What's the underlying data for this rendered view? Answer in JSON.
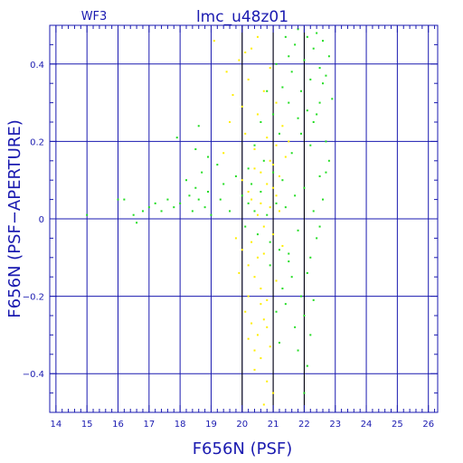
{
  "chart_data": {
    "type": "scatter",
    "title": "lmc_u48z01",
    "corner_label": "WF3",
    "xlabel": "F656N (PSF)",
    "ylabel": "F656N (PSF−APERTURE)",
    "xlim": [
      13.8,
      26.3
    ],
    "ylim": [
      -0.5,
      0.5
    ],
    "x_ticks": [
      14,
      15,
      16,
      17,
      18,
      19,
      20,
      21,
      22,
      23,
      24,
      25,
      26
    ],
    "y_ticks": [
      -0.4,
      -0.2,
      0,
      0.2,
      0.4
    ],
    "y_tick_labels": [
      "−0.4",
      "−0.2",
      "0",
      "0.2",
      "0.4"
    ],
    "grid": true,
    "colors": {
      "frame": "#1a1ab0",
      "grid": "#1a1ab0",
      "reference_lines": "#000000",
      "series_green": "#22dd22",
      "series_yellow": "#ffee00"
    },
    "reference_lines_x": [
      20,
      21,
      22
    ],
    "series": [
      {
        "color": "#ffee00",
        "points": [
          [
            19.1,
            0.46
          ],
          [
            19.5,
            0.38
          ],
          [
            19.7,
            0.32
          ],
          [
            19.9,
            0.41
          ],
          [
            20.0,
            0.29
          ],
          [
            20.1,
            0.22
          ],
          [
            20.2,
            0.36
          ],
          [
            20.3,
            0.44
          ],
          [
            20.4,
            0.18
          ],
          [
            20.5,
            0.27
          ],
          [
            20.6,
            0.12
          ],
          [
            20.7,
            0.33
          ],
          [
            20.8,
            0.21
          ],
          [
            20.9,
            0.15
          ],
          [
            21.0,
            0.08
          ],
          [
            21.1,
            0.19
          ],
          [
            21.2,
            0.11
          ],
          [
            21.3,
            0.24
          ],
          [
            20.3,
            0.05
          ],
          [
            20.5,
            0.01
          ],
          [
            20.7,
            -0.02
          ],
          [
            20.9,
            0.03
          ],
          [
            21.1,
            0.06
          ],
          [
            21.0,
            0.14
          ],
          [
            19.8,
            -0.05
          ],
          [
            20.0,
            -0.08
          ],
          [
            20.2,
            -0.12
          ],
          [
            20.4,
            -0.15
          ],
          [
            20.6,
            -0.18
          ],
          [
            20.8,
            -0.21
          ],
          [
            20.1,
            -0.24
          ],
          [
            20.3,
            -0.27
          ],
          [
            20.5,
            -0.3
          ],
          [
            20.7,
            -0.26
          ],
          [
            20.9,
            -0.33
          ],
          [
            20.6,
            -0.36
          ],
          [
            20.4,
            -0.39
          ],
          [
            20.8,
            -0.42
          ],
          [
            21.0,
            -0.45
          ],
          [
            20.7,
            -0.48
          ],
          [
            20.2,
            -0.31
          ],
          [
            19.9,
            -0.14
          ],
          [
            20.0,
            0.1
          ],
          [
            20.2,
            0.07
          ],
          [
            20.4,
            0.13
          ],
          [
            20.6,
            0.04
          ],
          [
            20.8,
            0.09
          ],
          [
            21.2,
            0.02
          ],
          [
            21.4,
            0.16
          ],
          [
            21.5,
            0.2
          ],
          [
            21.1,
            0.3
          ],
          [
            20.9,
            0.39
          ],
          [
            20.5,
            0.47
          ],
          [
            20.1,
            0.43
          ],
          [
            19.6,
            0.25
          ],
          [
            19.4,
            0.17
          ],
          [
            20.3,
            -0.06
          ],
          [
            20.5,
            -0.1
          ],
          [
            20.7,
            -0.09
          ],
          [
            21.0,
            -0.04
          ],
          [
            21.3,
            -0.07
          ],
          [
            20.6,
            -0.22
          ],
          [
            20.2,
            -0.2
          ],
          [
            20.8,
            -0.28
          ],
          [
            21.1,
            -0.16
          ],
          [
            20.4,
            -0.34
          ]
        ]
      },
      {
        "color": "#22dd22",
        "points": [
          [
            15.0,
            0.01
          ],
          [
            16.0,
            0.05
          ],
          [
            16.2,
            0.05
          ],
          [
            16.5,
            0.01
          ],
          [
            16.6,
            -0.01
          ],
          [
            16.8,
            0.02
          ],
          [
            17.0,
            0.03
          ],
          [
            17.2,
            0.04
          ],
          [
            17.4,
            0.02
          ],
          [
            17.6,
            0.05
          ],
          [
            17.8,
            0.03
          ],
          [
            18.0,
            0.04
          ],
          [
            17.9,
            0.21
          ],
          [
            18.2,
            0.1
          ],
          [
            18.3,
            0.06
          ],
          [
            18.4,
            0.02
          ],
          [
            18.5,
            0.08
          ],
          [
            18.6,
            0.05
          ],
          [
            18.7,
            0.12
          ],
          [
            18.8,
            0.03
          ],
          [
            18.9,
            0.07
          ],
          [
            19.0,
            0.01
          ],
          [
            18.5,
            0.18
          ],
          [
            18.6,
            0.24
          ],
          [
            18.9,
            0.16
          ],
          [
            19.2,
            0.14
          ],
          [
            19.3,
            0.05
          ],
          [
            19.4,
            0.09
          ],
          [
            19.6,
            0.02
          ],
          [
            19.8,
            0.11
          ],
          [
            20.0,
            0.06
          ],
          [
            20.1,
            -0.02
          ],
          [
            20.2,
            0.04
          ],
          [
            20.3,
            0.09
          ],
          [
            20.4,
            0.02
          ],
          [
            20.5,
            -0.04
          ],
          [
            20.6,
            0.07
          ],
          [
            20.7,
            0.15
          ],
          [
            20.8,
            0.01
          ],
          [
            20.9,
            -0.06
          ],
          [
            21.0,
            0.12
          ],
          [
            21.1,
            0.04
          ],
          [
            21.2,
            -0.08
          ],
          [
            21.3,
            0.1
          ],
          [
            21.4,
            0.03
          ],
          [
            21.5,
            -0.11
          ],
          [
            21.6,
            0.17
          ],
          [
            21.7,
            0.06
          ],
          [
            21.8,
            -0.03
          ],
          [
            21.9,
            0.22
          ],
          [
            22.0,
            0.08
          ],
          [
            22.1,
            -0.14
          ],
          [
            22.2,
            0.19
          ],
          [
            22.3,
            0.02
          ],
          [
            22.4,
            0.27
          ],
          [
            22.5,
            0.11
          ],
          [
            22.6,
            0.35
          ],
          [
            22.7,
            0.2
          ],
          [
            22.8,
            0.42
          ],
          [
            22.9,
            0.31
          ],
          [
            21.5,
            0.3
          ],
          [
            21.6,
            0.38
          ],
          [
            21.7,
            0.45
          ],
          [
            21.8,
            0.49
          ],
          [
            21.9,
            0.33
          ],
          [
            22.0,
            0.41
          ],
          [
            22.1,
            0.47
          ],
          [
            22.2,
            0.36
          ],
          [
            22.3,
            0.44
          ],
          [
            22.4,
            0.48
          ],
          [
            22.5,
            0.39
          ],
          [
            22.6,
            0.46
          ],
          [
            22.1,
            0.28
          ],
          [
            22.3,
            0.25
          ],
          [
            22.5,
            0.3
          ],
          [
            22.7,
            0.37
          ],
          [
            21.9,
            -0.2
          ],
          [
            22.0,
            -0.25
          ],
          [
            22.2,
            -0.3
          ],
          [
            21.8,
            -0.34
          ],
          [
            22.1,
            -0.38
          ],
          [
            22.0,
            -0.45
          ],
          [
            21.7,
            -0.28
          ],
          [
            21.6,
            -0.15
          ],
          [
            21.4,
            -0.22
          ],
          [
            21.3,
            -0.18
          ],
          [
            21.1,
            -0.24
          ],
          [
            20.9,
            -0.12
          ],
          [
            21.2,
            -0.32
          ],
          [
            21.5,
            -0.09
          ],
          [
            22.3,
            -0.21
          ],
          [
            22.4,
            -0.05
          ],
          [
            22.6,
            0.05
          ],
          [
            22.8,
            0.15
          ],
          [
            22.2,
            -0.1
          ],
          [
            21.8,
            0.26
          ],
          [
            21.2,
            0.22
          ],
          [
            21.0,
            0.27
          ],
          [
            20.6,
            0.25
          ],
          [
            20.4,
            0.19
          ],
          [
            20.2,
            0.13
          ],
          [
            21.3,
            0.34
          ],
          [
            21.5,
            0.42
          ],
          [
            21.1,
            0.4
          ],
          [
            20.8,
            0.33
          ],
          [
            21.4,
            0.47
          ],
          [
            22.7,
            0.12
          ],
          [
            22.5,
            -0.02
          ]
        ]
      }
    ]
  }
}
